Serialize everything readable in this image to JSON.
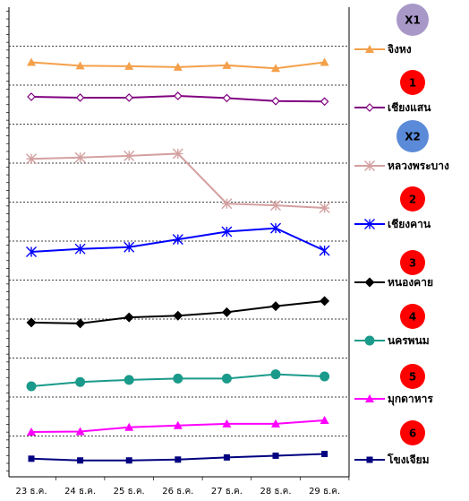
{
  "chart_data": {
    "type": "line",
    "categories": [
      "23 ธ.ค.",
      "24 ธ.ค.",
      "25 ธ.ค.",
      "26 ธ.ค.",
      "27 ธ.ค.",
      "28 ธ.ค.",
      "29 ธ.ค."
    ],
    "y_axis_labels": "none",
    "grid": "horizontal",
    "legend_placement": "right",
    "series": [
      {
        "name": "จิงหง",
        "badge": "X1",
        "badge_color": "#a898c8",
        "color": "#f4a04a",
        "marker": "triangle",
        "values": [
          26.4,
          26.0,
          25.95,
          25.85,
          26.05,
          25.7,
          26.4
        ]
      },
      {
        "name": "เชียงแสน",
        "badge": "1",
        "badge_color": "#ff0000",
        "color": "#800080",
        "marker": "diamond-open",
        "values": [
          22.4,
          22.3,
          22.3,
          22.5,
          22.25,
          21.9,
          21.85
        ]
      },
      {
        "name": "หลวงพระบาง",
        "badge": "X2",
        "badge_color": "#5b8ad8",
        "color": "#d4a0a0",
        "marker": "asterisk",
        "values": [
          15.2,
          15.35,
          15.55,
          15.8,
          10.0,
          9.8,
          9.5
        ]
      },
      {
        "name": "เชียงคาน",
        "badge": "2",
        "badge_color": "#ff0000",
        "color": "#0000ff",
        "marker": "star",
        "values": [
          4.4,
          4.75,
          4.95,
          5.85,
          6.75,
          7.15,
          4.55
        ]
      },
      {
        "name": "หนองคาย",
        "badge": "3",
        "badge_color": "#ff0000",
        "color": "#000000",
        "marker": "diamond",
        "values": [
          -3.8,
          -3.9,
          -3.2,
          -3.0,
          -2.6,
          -1.9,
          -1.3
        ]
      },
      {
        "name": "นครพนม",
        "badge": "4",
        "badge_color": "#ff0000",
        "color": "#1a9a8a",
        "marker": "circle",
        "values": [
          -11.2,
          -10.7,
          -10.45,
          -10.3,
          -10.3,
          -9.8,
          -10.05
        ]
      },
      {
        "name": "มุกดาหาร",
        "badge": "5",
        "badge_color": "#ff0000",
        "color": "#ff00ff",
        "marker": "triangle",
        "values": [
          -16.5,
          -16.45,
          -15.95,
          -15.75,
          -15.55,
          -15.55,
          -15.15
        ]
      },
      {
        "name": "โขงเจียม",
        "badge": "6",
        "badge_color": "#ff0000",
        "color": "#000080",
        "marker": "square",
        "values": [
          -19.6,
          -19.8,
          -19.8,
          -19.7,
          -19.45,
          -19.25,
          -19.05
        ]
      }
    ],
    "ylim": [
      -21.7,
      32.8
    ]
  }
}
